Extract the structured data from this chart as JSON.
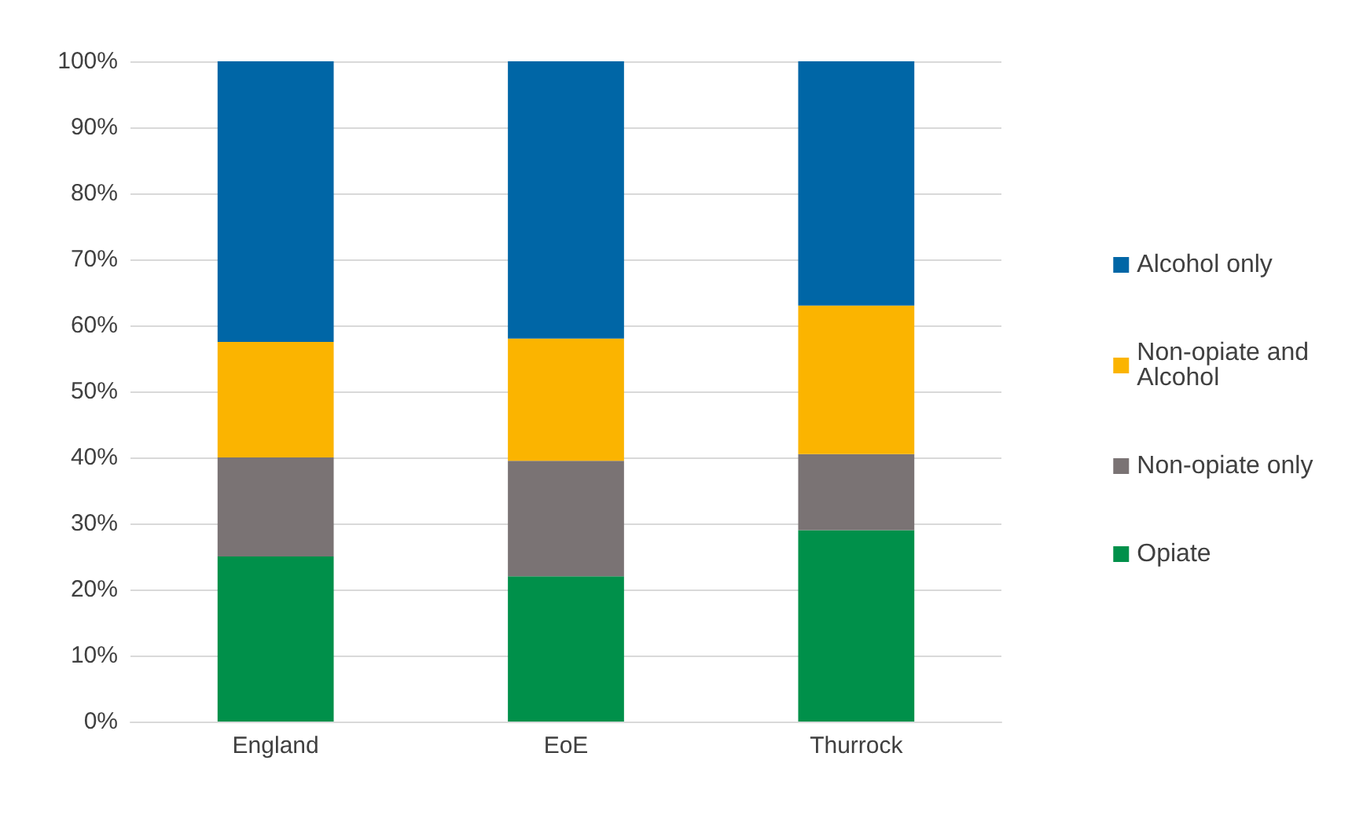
{
  "chart_data": {
    "type": "bar",
    "stacked": true,
    "categories": [
      "England",
      "EoE",
      "Thurrock"
    ],
    "series": [
      {
        "name": "Opiate",
        "color": "#00904a",
        "values": [
          25,
          22,
          29
        ]
      },
      {
        "name": "Non-opiate only",
        "color": "#7a7374",
        "values": [
          15,
          17.5,
          11.5
        ]
      },
      {
        "name": "Non-opiate and Alcohol",
        "color": "#fbb400",
        "values": [
          17.5,
          18.5,
          22.5
        ]
      },
      {
        "name": "Alcohol only",
        "color": "#0066a6",
        "values": [
          42.5,
          42,
          37
        ]
      }
    ],
    "ylim": [
      0,
      100
    ],
    "yticks": [
      {
        "value": 0,
        "label": "0%"
      },
      {
        "value": 10,
        "label": "10%"
      },
      {
        "value": 20,
        "label": "20%"
      },
      {
        "value": 30,
        "label": "30%"
      },
      {
        "value": 40,
        "label": "40%"
      },
      {
        "value": 50,
        "label": "50%"
      },
      {
        "value": 60,
        "label": "60%"
      },
      {
        "value": 70,
        "label": "70%"
      },
      {
        "value": 80,
        "label": "80%"
      },
      {
        "value": 90,
        "label": "90%"
      },
      {
        "value": 100,
        "label": "100%"
      }
    ],
    "grid": "y",
    "legend": "right"
  }
}
